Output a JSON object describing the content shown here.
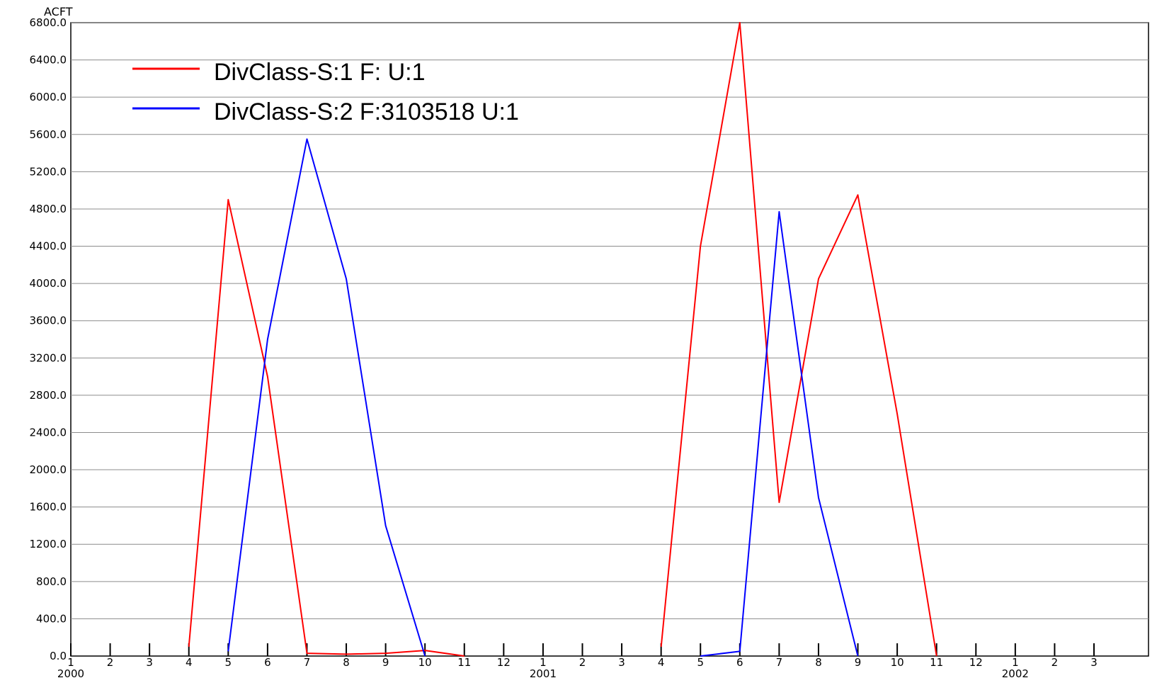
{
  "chart_data": {
    "type": "line",
    "title": "",
    "unit_label": "ACFT",
    "ylim": [
      0,
      6800
    ],
    "y_ticks": [
      0,
      400,
      800,
      1200,
      1600,
      2000,
      2400,
      2800,
      3200,
      3600,
      4000,
      4400,
      4800,
      5200,
      5600,
      6000,
      6400,
      6800
    ],
    "y_tick_labels": [
      "0.0",
      "400.0",
      "800.0",
      "1200.0",
      "1600.0",
      "2000.0",
      "2400.0",
      "2800.0",
      "3200.0",
      "3600.0",
      "4000.0",
      "4400.0",
      "4800.0",
      "5200.0",
      "5600.0",
      "6000.0",
      "6400.0",
      "6800.0"
    ],
    "x_ticks": [
      "2000-01",
      "2000-02",
      "2000-03",
      "2000-04",
      "2000-05",
      "2000-06",
      "2000-07",
      "2000-08",
      "2000-09",
      "2000-10",
      "2000-11",
      "2000-12",
      "2001-01",
      "2001-02",
      "2001-03",
      "2001-04",
      "2001-05",
      "2001-06",
      "2001-07",
      "2001-08",
      "2001-09",
      "2001-10",
      "2001-11",
      "2001-12",
      "2002-01",
      "2002-02",
      "2002-03"
    ],
    "x_tick_labels": [
      "1",
      "2",
      "3",
      "4",
      "5",
      "6",
      "7",
      "8",
      "9",
      "10",
      "11",
      "12",
      "1",
      "2",
      "3",
      "4",
      "5",
      "6",
      "7",
      "8",
      "9",
      "10",
      "11",
      "12",
      "1",
      "2",
      "3"
    ],
    "x_year_labels": [
      {
        "label": "2000",
        "at": "2000-01"
      },
      {
        "label": "2001",
        "at": "2001-01"
      },
      {
        "label": "2002",
        "at": "2002-01"
      }
    ],
    "grid": "horizontal",
    "legend_position": "top-left",
    "series": [
      {
        "name": "DivClass-S:1 F: U:1",
        "color": "#ff0000",
        "points": [
          {
            "x": "2000-04",
            "y": 100
          },
          {
            "x": "2000-05",
            "y": 4900
          },
          {
            "x": "2000-06",
            "y": 3000
          },
          {
            "x": "2000-07",
            "y": 30
          },
          {
            "x": "2000-08",
            "y": 20
          },
          {
            "x": "2000-09",
            "y": 30
          },
          {
            "x": "2000-10",
            "y": 60
          },
          {
            "x": "2000-11",
            "y": 0
          },
          {
            "x": "2001-04",
            "y": 100
          },
          {
            "x": "2001-05",
            "y": 4400
          },
          {
            "x": "2001-06",
            "y": 6800
          },
          {
            "x": "2001-07",
            "y": 1650
          },
          {
            "x": "2001-08",
            "y": 4050
          },
          {
            "x": "2001-09",
            "y": 4950
          },
          {
            "x": "2001-10",
            "y": 2600
          },
          {
            "x": "2001-11",
            "y": 0
          }
        ]
      },
      {
        "name": "DivClass-S:2 F:3103518 U:1",
        "color": "#0000ff",
        "points": [
          {
            "x": "2000-05",
            "y": 50
          },
          {
            "x": "2000-06",
            "y": 3400
          },
          {
            "x": "2000-07",
            "y": 5550
          },
          {
            "x": "2000-08",
            "y": 4050
          },
          {
            "x": "2000-09",
            "y": 1400
          },
          {
            "x": "2000-10",
            "y": 0
          },
          {
            "x": "2001-05",
            "y": 0
          },
          {
            "x": "2001-06",
            "y": 50
          },
          {
            "x": "2001-07",
            "y": 4770
          },
          {
            "x": "2001-08",
            "y": 1700
          },
          {
            "x": "2001-09",
            "y": 0
          }
        ]
      }
    ]
  }
}
